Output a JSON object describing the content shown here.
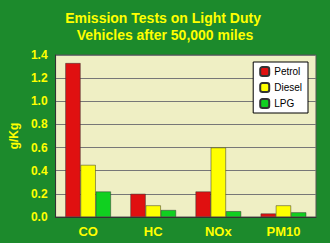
{
  "chart_data": {
    "type": "bar",
    "title": "Emission Tests on Light Duty Vehicles after 50,000 miles",
    "y_label": "g/Kg",
    "categories": [
      "CO",
      "HC",
      "NOx",
      "PM10"
    ],
    "series": [
      {
        "name": "Petrol",
        "color": "#e01010",
        "values": [
          1.33,
          0.2,
          0.22,
          0.03
        ]
      },
      {
        "name": "Diesel",
        "color": "#ffff00",
        "values": [
          0.45,
          0.1,
          0.6,
          0.1
        ]
      },
      {
        "name": "LPG",
        "color": "#10d020",
        "values": [
          0.22,
          0.06,
          0.05,
          0.04
        ]
      }
    ],
    "ylim": [
      0,
      1.4
    ],
    "yticks": [
      {
        "value": 0,
        "label": "0.0"
      },
      {
        "value": 0.2,
        "label": "0.2"
      },
      {
        "value": 0.4,
        "label": "0.4"
      },
      {
        "value": 0.6,
        "label": "0.6"
      },
      {
        "value": 0.8,
        "label": "0.8"
      },
      {
        "value": 1,
        "label": "1.0"
      },
      {
        "value": 1.2,
        "label": "1.2"
      },
      {
        "value": 1.4,
        "label": "1.4"
      }
    ],
    "grid": true,
    "legend": "top-right"
  }
}
